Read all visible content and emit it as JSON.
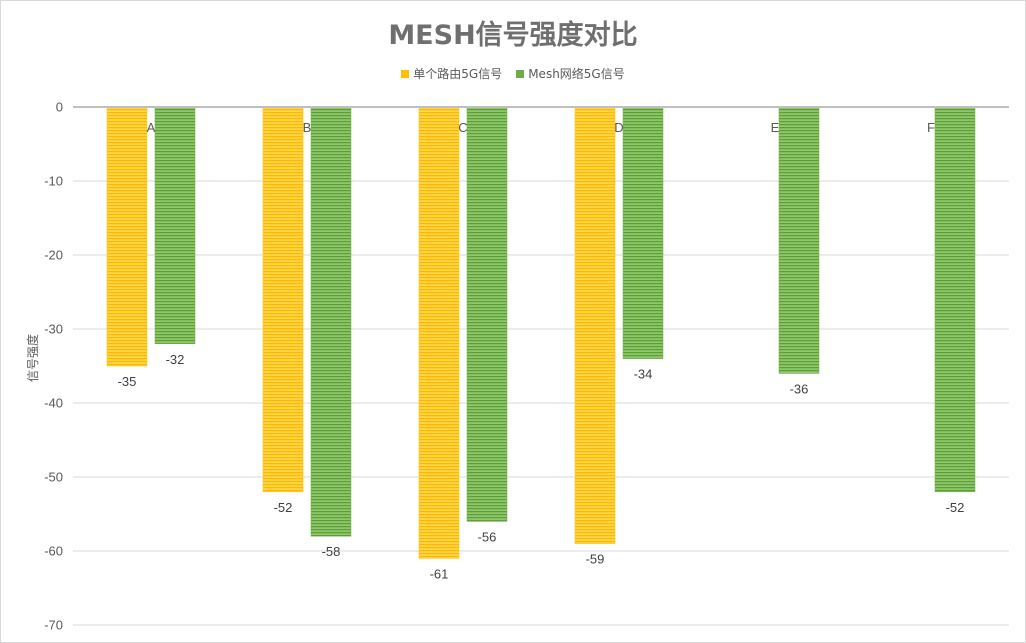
{
  "chart_data": {
    "type": "bar",
    "title": "MESH信号强度对比",
    "ylabel": "信号强度",
    "xlabel": "",
    "categories": [
      "A",
      "B",
      "C",
      "D",
      "E",
      "F"
    ],
    "series": [
      {
        "name": "单个路由5G信号",
        "color": "#FFC000",
        "values": [
          -35,
          -52,
          -61,
          -59,
          null,
          null
        ]
      },
      {
        "name": "Mesh网络5G信号",
        "color": "#70AD47",
        "values": [
          -32,
          -58,
          -56,
          -34,
          -36,
          -52
        ]
      }
    ],
    "ylim": [
      -70,
      0
    ],
    "yticks": [
      0,
      -10,
      -20,
      -30,
      -40,
      -50,
      -60,
      -70
    ],
    "grid": true,
    "legend_position": "top"
  }
}
